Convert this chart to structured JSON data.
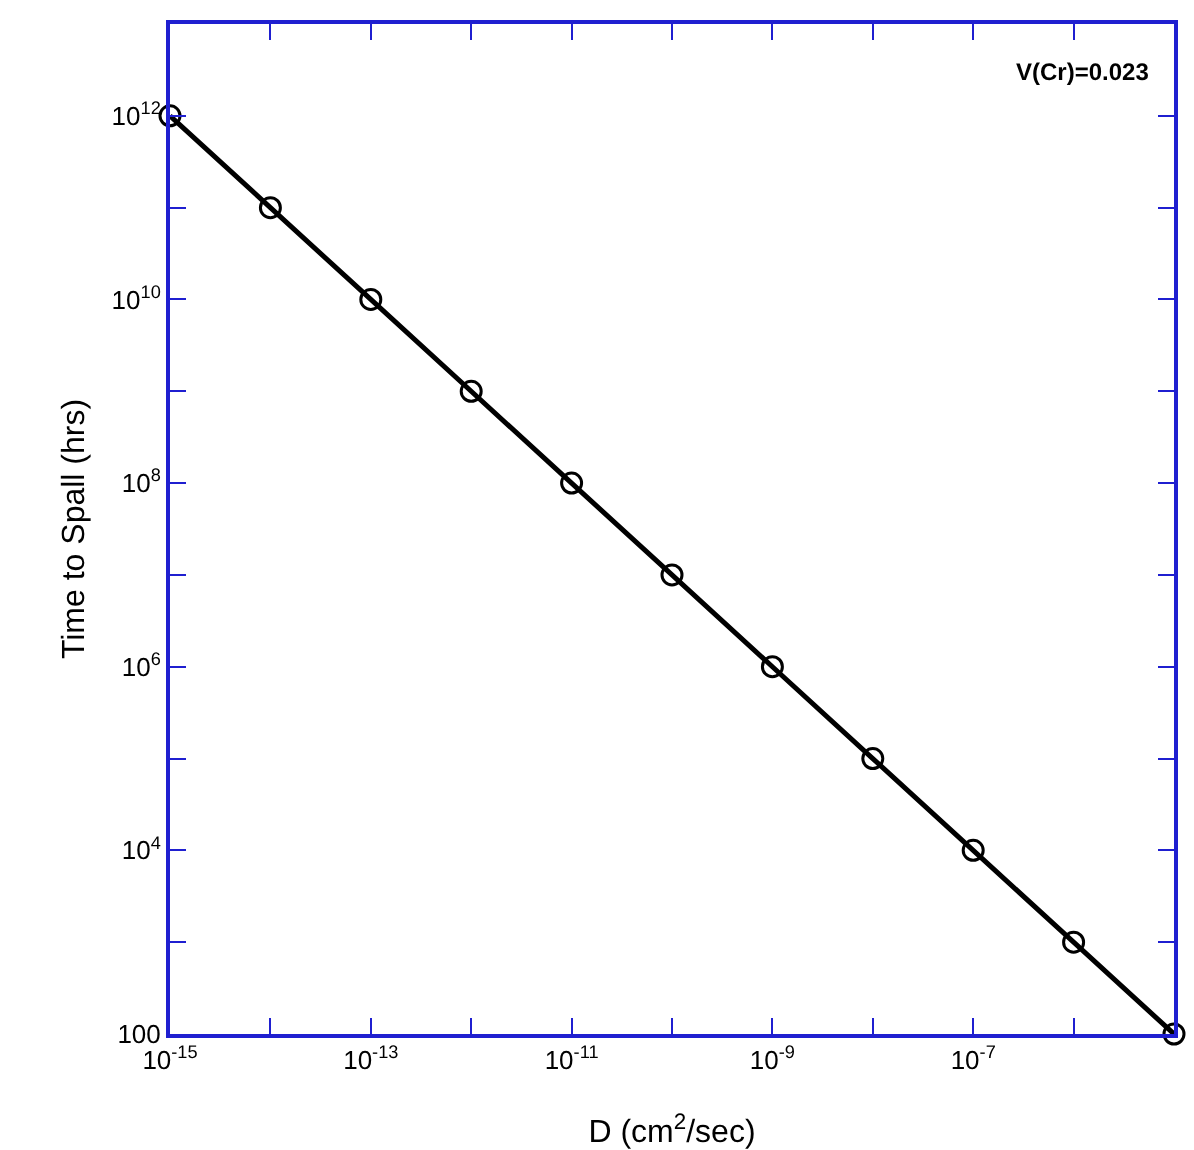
{
  "chart_data": {
    "type": "line",
    "xlabel": "D (cm$^{2}$/sec)",
    "ylabel": "Time to Spall (hrs)",
    "log": "xy",
    "grid": false,
    "marker": "circle",
    "line_style": "solid",
    "annotations": [
      "V(Cr)=0.023"
    ],
    "x": [
      1e-15,
      1e-14,
      1e-13,
      1e-12,
      1e-11,
      1e-10,
      1e-09,
      1e-08,
      1e-07,
      1e-06,
      1e-05
    ],
    "series": [
      {
        "color": "#000000",
        "values": [
          1000000000000.0,
          100000000000.0,
          10000000000.0,
          1000000000.0,
          100000000.0,
          10000000.0,
          1000000.0,
          100000.0,
          10000.0,
          1000.0,
          100
        ]
      }
    ],
    "xlim": [
      1e-15,
      1e-05
    ],
    "ylim": [
      100,
      10000000000000.0
    ],
    "xticks": [
      {
        "value": 1e-15,
        "label": "10$^{-15}$"
      },
      {
        "value": 1e-14,
        "label": null
      },
      {
        "value": 1e-13,
        "label": "10$^{-13}$"
      },
      {
        "value": 1e-12,
        "label": null
      },
      {
        "value": 1e-11,
        "label": "10$^{-11}$"
      },
      {
        "value": 1e-10,
        "label": null
      },
      {
        "value": 1e-09,
        "label": "10$^{-9}$"
      },
      {
        "value": 1e-08,
        "label": null
      },
      {
        "value": 1e-07,
        "label": "10$^{-7}$"
      },
      {
        "value": 1e-06,
        "label": null
      },
      {
        "value": 1e-05,
        "label": null
      }
    ],
    "yticks": [
      100,
      {
        "value": 1000.0,
        "label": null
      },
      {
        "value": 10000.0,
        "label": "10$^{4}$"
      },
      {
        "value": 100000.0,
        "label": null
      },
      {
        "value": 1000000.0,
        "label": "10$^{6}$"
      },
      {
        "value": 10000000.0,
        "label": null
      },
      {
        "value": 100000000.0,
        "label": "10$^{8}$"
      },
      {
        "value": 1000000000.0,
        "label": null
      },
      {
        "value": 10000000000.0,
        "label": "10$^{10}$"
      },
      {
        "value": 100000000000.0,
        "label": null
      },
      {
        "value": 1000000000000.0,
        "label": "10$^{12}$"
      },
      {
        "value": 10000000000000.0,
        "label": null
      }
    ]
  }
}
